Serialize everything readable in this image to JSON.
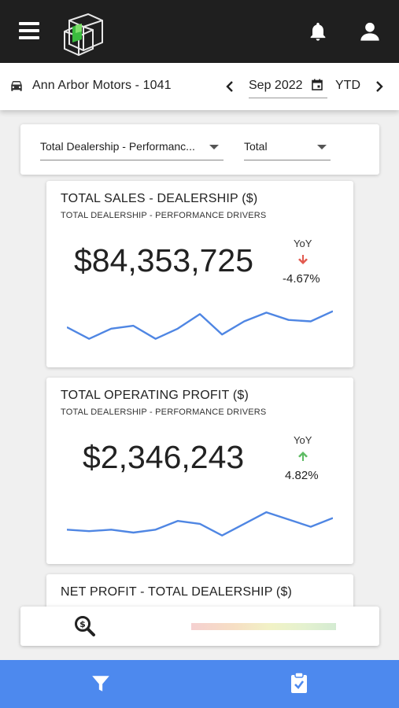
{
  "header": {
    "menu_icon": "hamburger-menu-icon",
    "logo": "cube-logo",
    "notification_icon": "bell-icon",
    "account_icon": "user-icon",
    "background_color": "#1f1f1f"
  },
  "dealer_bar": {
    "icon": "car-icon",
    "dealer_name": "Ann Arbor Motors - 1041",
    "date": "Sep 2022",
    "date_icon": "calendar-icon",
    "period": "YTD"
  },
  "filters": {
    "department": "Total Dealership - Performanc...",
    "scope": "Total"
  },
  "kpis": [
    {
      "title": "TOTAL SALES - DEALERSHIP ($)",
      "subtitle": "TOTAL DEALERSHIP - PERFORMANCE DRIVERS",
      "value": "$84,353,725",
      "yoy_label": "YoY",
      "yoy_direction": "down",
      "yoy_value": "-4.67%",
      "yoy_color": "#e25a4f",
      "trend": [
        48,
        40,
        47,
        49,
        40,
        47,
        57,
        43,
        52,
        58,
        53,
        52,
        59
      ]
    },
    {
      "title": "TOTAL OPERATING PROFIT ($)",
      "subtitle": "TOTAL DEALERSHIP - PERFORMANCE DRIVERS",
      "value": "$2,346,243",
      "yoy_label": "YoY",
      "yoy_direction": "up",
      "yoy_value": "4.82%",
      "yoy_color": "#5dbb63",
      "trend": [
        44,
        43,
        44,
        42,
        44,
        50,
        48,
        40,
        48,
        56,
        51,
        46,
        52
      ]
    },
    {
      "title": "NET PROFIT - TOTAL DEALERSHIP ($)"
    }
  ],
  "search_bar": {
    "icon": "magnify-dollar-icon"
  },
  "bottom_nav": {
    "filter_icon": "filter-icon",
    "tasks_icon": "clipboard-check-icon",
    "background_color": "#4d89ee"
  },
  "colors": {
    "sparkline": "#4f86e3",
    "accent": "#4d89ee"
  }
}
